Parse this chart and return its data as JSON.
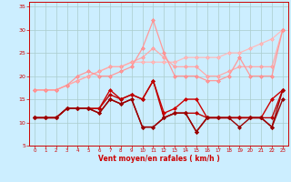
{
  "xlabel": "Vent moyen/en rafales ( km/h )",
  "background_color": "#cceeff",
  "grid_color": "#aacccc",
  "x": [
    0,
    1,
    2,
    3,
    4,
    5,
    6,
    7,
    8,
    9,
    10,
    11,
    12,
    13,
    14,
    15,
    16,
    17,
    18,
    19,
    20,
    21,
    22,
    23
  ],
  "pink1": [
    17,
    17,
    17,
    18,
    19,
    20,
    21,
    22,
    22,
    23,
    23,
    23,
    23,
    23,
    24,
    24,
    24,
    24,
    25,
    25,
    26,
    27,
    28,
    30
  ],
  "pink2": [
    17,
    17,
    17,
    18,
    19,
    20,
    21,
    22,
    22,
    23,
    24,
    26,
    24,
    22,
    22,
    22,
    20,
    20,
    21,
    22,
    22,
    22,
    22,
    30
  ],
  "pink3": [
    17,
    17,
    17,
    18,
    20,
    21,
    20,
    20,
    21,
    22,
    26,
    32,
    25,
    20,
    20,
    20,
    19,
    19,
    20,
    24,
    20,
    20,
    20,
    30
  ],
  "red1": [
    11,
    11,
    11,
    13,
    13,
    13,
    13,
    17,
    15,
    16,
    15,
    19,
    12,
    13,
    15,
    15,
    11,
    11,
    11,
    11,
    11,
    11,
    15,
    17
  ],
  "red2": [
    11,
    11,
    11,
    13,
    13,
    13,
    13,
    16,
    15,
    16,
    15,
    19,
    11,
    12,
    12,
    12,
    11,
    11,
    11,
    11,
    11,
    11,
    11,
    17
  ],
  "red3": [
    11,
    11,
    11,
    13,
    13,
    13,
    12,
    15,
    14,
    15,
    9,
    9,
    11,
    12,
    12,
    8,
    11,
    11,
    11,
    11,
    11,
    11,
    9,
    17
  ],
  "red4": [
    11,
    11,
    11,
    13,
    13,
    13,
    12,
    15,
    14,
    15,
    9,
    9,
    11,
    12,
    12,
    8,
    11,
    11,
    11,
    9,
    11,
    11,
    9,
    15
  ],
  "ylim": [
    5,
    36
  ],
  "xlim": [
    -0.5,
    23.5
  ],
  "yticks": [
    5,
    10,
    15,
    20,
    25,
    30,
    35
  ],
  "xticks": [
    0,
    1,
    2,
    3,
    4,
    5,
    6,
    7,
    8,
    9,
    10,
    11,
    12,
    13,
    14,
    15,
    16,
    17,
    18,
    19,
    20,
    21,
    22,
    23
  ]
}
